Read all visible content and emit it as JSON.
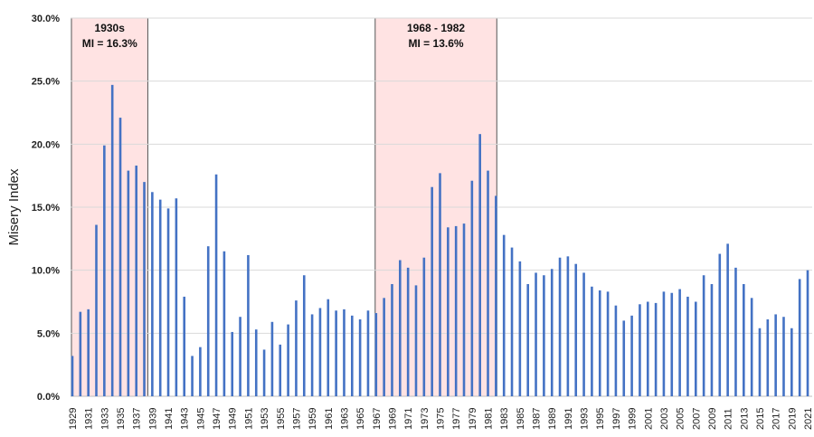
{
  "chart_data": {
    "type": "bar",
    "title": "",
    "xlabel": "",
    "ylabel": "Misery Index",
    "ylim": [
      0,
      30
    ],
    "yticks": [
      "0.0%",
      "5.0%",
      "10.0%",
      "15.0%",
      "20.0%",
      "25.0%",
      "30.0%"
    ],
    "grid": true,
    "bar_color": "#4472C4",
    "x": [
      1929,
      1930,
      1931,
      1932,
      1933,
      1934,
      1935,
      1936,
      1937,
      1938,
      1939,
      1940,
      1941,
      1942,
      1943,
      1944,
      1945,
      1946,
      1947,
      1948,
      1949,
      1950,
      1951,
      1952,
      1953,
      1954,
      1955,
      1956,
      1957,
      1958,
      1959,
      1960,
      1961,
      1962,
      1963,
      1964,
      1965,
      1966,
      1967,
      1968,
      1969,
      1970,
      1971,
      1972,
      1973,
      1974,
      1975,
      1976,
      1977,
      1978,
      1979,
      1980,
      1981,
      1982,
      1983,
      1984,
      1985,
      1986,
      1987,
      1988,
      1989,
      1990,
      1991,
      1992,
      1993,
      1994,
      1995,
      1996,
      1997,
      1998,
      1999,
      2000,
      2001,
      2002,
      2003,
      2004,
      2005,
      2006,
      2007,
      2008,
      2009,
      2010,
      2011,
      2012,
      2013,
      2014,
      2015,
      2016,
      2017,
      2018,
      2019,
      2020,
      2021
    ],
    "values": [
      3.2,
      6.7,
      6.9,
      13.6,
      19.9,
      24.7,
      22.1,
      17.9,
      18.3,
      17.0,
      16.2,
      15.6,
      14.9,
      15.7,
      7.9,
      3.2,
      3.9,
      11.9,
      17.6,
      11.5,
      5.1,
      6.3,
      11.2,
      5.3,
      3.7,
      5.9,
      4.1,
      5.7,
      7.6,
      9.6,
      6.5,
      7.0,
      7.7,
      6.8,
      6.9,
      6.4,
      6.1,
      6.8,
      6.6,
      7.8,
      8.9,
      10.8,
      10.2,
      8.8,
      11.0,
      16.6,
      17.7,
      13.4,
      13.5,
      13.7,
      17.1,
      20.8,
      17.9,
      15.9,
      12.8,
      11.8,
      10.7,
      8.9,
      9.8,
      9.6,
      10.1,
      11.0,
      11.1,
      10.5,
      9.8,
      8.7,
      8.4,
      8.3,
      7.2,
      6.0,
      6.4,
      7.3,
      7.5,
      7.4,
      8.3,
      8.2,
      8.5,
      7.9,
      7.5,
      9.6,
      8.9,
      11.3,
      12.1,
      10.2,
      8.9,
      7.8,
      5.4,
      6.1,
      6.5,
      6.3,
      5.4,
      9.3,
      10.0
    ],
    "annotations": [
      {
        "line1": "1930s",
        "line2": "MI = 16.3%",
        "from": 1929,
        "to": 1938,
        "fill": "#FFE3E3"
      },
      {
        "line1": "1968 - 1982",
        "line2": "MI = 13.6%",
        "from": 1967,
        "to": 1982,
        "fill": "#FFE3E3"
      }
    ]
  }
}
